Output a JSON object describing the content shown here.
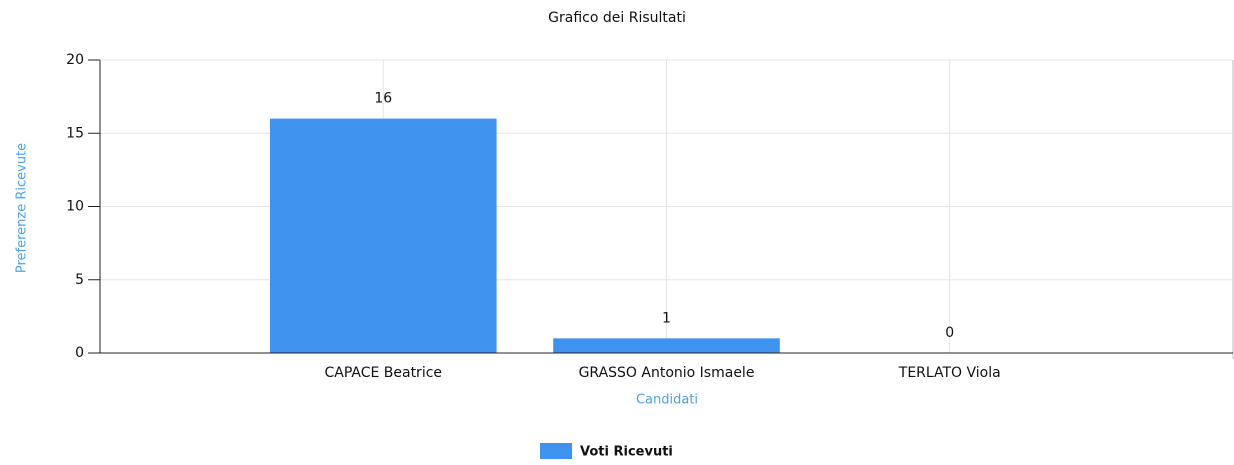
{
  "chart_data": {
    "type": "bar",
    "title": "Grafico dei Risultati",
    "x_label": "Candidati",
    "y_label": "Preferenze Ricevute",
    "categories": [
      "CAPACE Beatrice",
      "GRASSO Antonio Ismaele",
      "TERLATO Viola"
    ],
    "series": [
      {
        "name": "Voti Ricevuti",
        "color": "#3f93ef",
        "values": [
          16,
          1,
          0
        ]
      }
    ],
    "ylim": [
      0,
      20
    ],
    "yticks": [
      0,
      5,
      10,
      15,
      20
    ],
    "grid": true,
    "legend": "bottom"
  }
}
